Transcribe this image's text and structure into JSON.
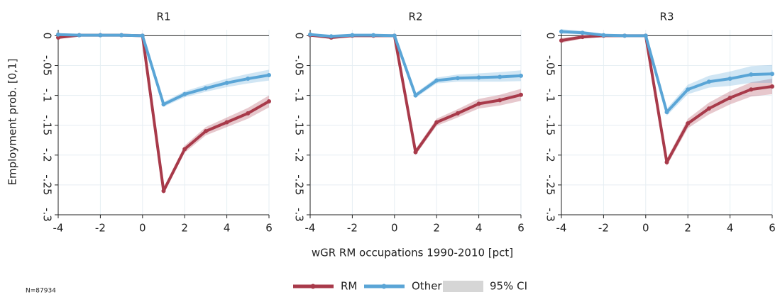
{
  "x_label": "wGR RM occupations 1990-2010 [pct]",
  "y_label": "Employment prob. [0,1]",
  "ci_legend": "95% CI",
  "note": "N=87934",
  "chart_data": [
    {
      "type": "line",
      "title": "R1",
      "x": [
        -4,
        -3,
        -2,
        -1,
        0,
        1,
        2,
        3,
        4,
        5,
        6
      ],
      "xlim": [
        -4,
        6
      ],
      "xticks": [
        -4,
        -2,
        0,
        2,
        4,
        6
      ],
      "ylim": [
        -0.3,
        0.01
      ],
      "yticks": [
        0,
        {
          "value": -0.05,
          "label": "-.05"
        },
        {
          "value": -0.1,
          "label": "-.1"
        },
        {
          "value": -0.15,
          "label": "-.15"
        },
        {
          "value": -0.2,
          "label": "-.2"
        },
        {
          "value": -0.25,
          "label": "-.25"
        },
        {
          "value": -0.3,
          "label": "-.3"
        }
      ],
      "grid": true,
      "series": [
        {
          "name": "RM",
          "color": "#a83a4a",
          "values": [
            -0.003,
            0.001,
            0.001,
            0.001,
            0,
            -0.26,
            -0.19,
            -0.16,
            -0.145,
            -0.13,
            -0.11
          ],
          "lower": [
            -0.005,
            -0.001,
            -0.001,
            -0.001,
            0,
            -0.265,
            -0.196,
            -0.167,
            -0.153,
            -0.139,
            -0.12
          ],
          "upper": [
            -0.001,
            0.003,
            0.003,
            0.003,
            0,
            -0.255,
            -0.184,
            -0.153,
            -0.137,
            -0.121,
            -0.1
          ]
        },
        {
          "name": "Other",
          "color": "#5aa5d6",
          "values": [
            0.002,
            0.001,
            0.001,
            0.001,
            0,
            -0.115,
            -0.098,
            -0.088,
            -0.079,
            -0.072,
            -0.066
          ],
          "lower": [
            0,
            -0.001,
            -0.001,
            -0.001,
            0,
            -0.119,
            -0.103,
            -0.094,
            -0.086,
            -0.08,
            -0.075
          ],
          "upper": [
            0.004,
            0.003,
            0.003,
            0.003,
            0,
            -0.111,
            -0.093,
            -0.082,
            -0.072,
            -0.064,
            -0.057
          ]
        }
      ]
    },
    {
      "type": "line",
      "title": "R2",
      "x": [
        -4,
        -3,
        -2,
        -1,
        0,
        1,
        2,
        3,
        4,
        5,
        6
      ],
      "xlim": [
        -4,
        6
      ],
      "xticks": [
        -4,
        -2,
        0,
        2,
        4,
        6
      ],
      "ylim": [
        -0.3,
        0.01
      ],
      "yticks": [
        0,
        {
          "value": -0.05,
          "label": "-.05"
        },
        {
          "value": -0.1,
          "label": "-.1"
        },
        {
          "value": -0.15,
          "label": "-.15"
        },
        {
          "value": -0.2,
          "label": "-.2"
        },
        {
          "value": -0.25,
          "label": "-.25"
        },
        {
          "value": -0.3,
          "label": "-.3"
        }
      ],
      "grid": true,
      "series": [
        {
          "name": "RM",
          "color": "#a83a4a",
          "values": [
            0.001,
            -0.003,
            0,
            0,
            0,
            -0.195,
            -0.145,
            -0.13,
            -0.114,
            -0.108,
            -0.099
          ],
          "lower": [
            -0.001,
            -0.005,
            -0.002,
            -0.002,
            0,
            -0.2,
            -0.151,
            -0.137,
            -0.122,
            -0.117,
            -0.109
          ],
          "upper": [
            0.003,
            -0.001,
            0.002,
            0.002,
            0,
            -0.19,
            -0.139,
            -0.123,
            -0.106,
            -0.099,
            -0.089
          ]
        },
        {
          "name": "Other",
          "color": "#5aa5d6",
          "values": [
            0.002,
            -0.001,
            0.001,
            0.001,
            0,
            -0.1,
            -0.075,
            -0.071,
            -0.07,
            -0.069,
            -0.067
          ],
          "lower": [
            0,
            -0.003,
            -0.001,
            -0.001,
            0,
            -0.104,
            -0.08,
            -0.077,
            -0.077,
            -0.077,
            -0.076
          ],
          "upper": [
            0.004,
            0.001,
            0.003,
            0.003,
            0,
            -0.096,
            -0.07,
            -0.065,
            -0.063,
            -0.061,
            -0.058
          ]
        }
      ]
    },
    {
      "type": "line",
      "title": "R3",
      "x": [
        -4,
        -3,
        -2,
        -1,
        0,
        1,
        2,
        3,
        4,
        5,
        6
      ],
      "xlim": [
        -4,
        6
      ],
      "xticks": [
        -4,
        -2,
        0,
        2,
        4,
        6
      ],
      "ylim": [
        -0.3,
        0.01
      ],
      "yticks": [
        0,
        {
          "value": -0.05,
          "label": "-.05"
        },
        {
          "value": -0.1,
          "label": "-.1"
        },
        {
          "value": -0.15,
          "label": "-.15"
        },
        {
          "value": -0.2,
          "label": "-.2"
        },
        {
          "value": -0.25,
          "label": "-.25"
        },
        {
          "value": -0.3,
          "label": "-.3"
        }
      ],
      "grid": true,
      "series": [
        {
          "name": "RM",
          "color": "#a83a4a",
          "values": [
            -0.008,
            -0.002,
            0,
            0,
            0,
            -0.212,
            -0.147,
            -0.122,
            -0.104,
            -0.09,
            -0.085
          ],
          "lower": [
            -0.012,
            -0.005,
            -0.002,
            -0.002,
            0,
            -0.218,
            -0.155,
            -0.132,
            -0.115,
            -0.102,
            -0.098
          ],
          "upper": [
            -0.004,
            0.001,
            0.002,
            0.002,
            0,
            -0.206,
            -0.139,
            -0.112,
            -0.093,
            -0.078,
            -0.072
          ]
        },
        {
          "name": "Other",
          "color": "#5aa5d6",
          "values": [
            0.007,
            0.005,
            0.001,
            0,
            0,
            -0.128,
            -0.09,
            -0.077,
            -0.072,
            -0.065,
            -0.064
          ],
          "lower": [
            0.003,
            0.002,
            -0.001,
            -0.002,
            0,
            -0.134,
            -0.098,
            -0.087,
            -0.084,
            -0.079,
            -0.079
          ],
          "upper": [
            0.011,
            0.008,
            0.003,
            0.002,
            0,
            -0.122,
            -0.082,
            -0.067,
            -0.06,
            -0.051,
            -0.049
          ]
        }
      ]
    }
  ]
}
